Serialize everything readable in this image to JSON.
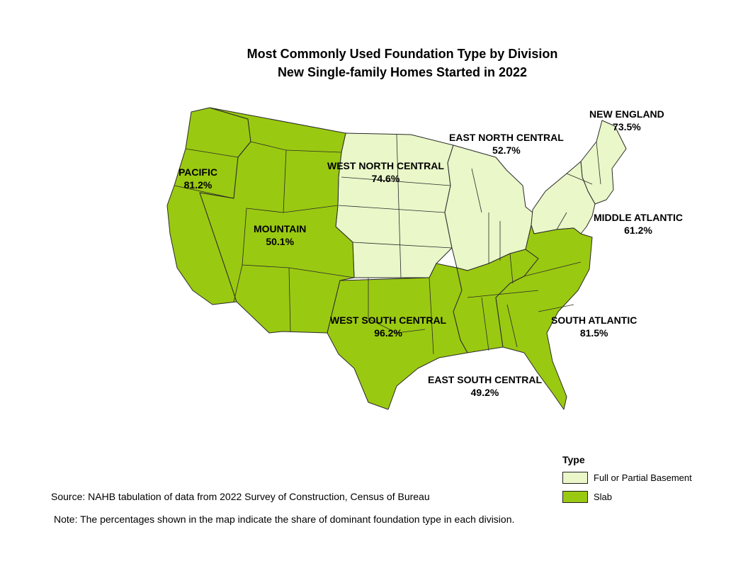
{
  "title": {
    "line1": "Most Commonly Used Foundation Type by Division",
    "line2": "New Single-family Homes Started in 2022"
  },
  "colors": {
    "basement": "#e9f7c9",
    "slab": "#9ac911",
    "border": "#2a2a2a"
  },
  "divisions": [
    {
      "name": "NEW ENGLAND",
      "percent": "73.5%",
      "type": "Full or Partial Basement"
    },
    {
      "name": "EAST NORTH CENTRAL",
      "percent": "52.7%",
      "type": "Full or Partial Basement"
    },
    {
      "name": "WEST NORTH CENTRAL",
      "percent": "74.6%",
      "type": "Full or Partial Basement"
    },
    {
      "name": "PACIFIC",
      "percent": "81.2%",
      "type": "Slab"
    },
    {
      "name": "MIDDLE ATLANTIC",
      "percent": "61.2%",
      "type": "Full or Partial Basement"
    },
    {
      "name": "MOUNTAIN",
      "percent": "50.1%",
      "type": "Slab"
    },
    {
      "name": "WEST SOUTH CENTRAL",
      "percent": "96.2%",
      "type": "Slab"
    },
    {
      "name": "SOUTH ATLANTIC",
      "percent": "81.5%",
      "type": "Slab"
    },
    {
      "name": "EAST SOUTH CENTRAL",
      "percent": "49.2%",
      "type": "Slab"
    }
  ],
  "legend": {
    "title": "Type",
    "items": [
      "Full or Partial Basement",
      "Slab"
    ]
  },
  "source": "Source: NAHB tabulation of data from 2022 Survey of Construction, Census of Bureau",
  "note": "Note: The percentages shown in the map indicate the share of dominant foundation type in each division."
}
